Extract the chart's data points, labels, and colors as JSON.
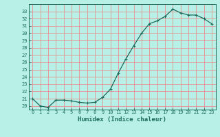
{
  "x": [
    0,
    1,
    2,
    3,
    4,
    5,
    6,
    7,
    8,
    9,
    10,
    11,
    12,
    13,
    14,
    15,
    16,
    17,
    18,
    19,
    20,
    21,
    22,
    23
  ],
  "y": [
    21.0,
    20.0,
    19.8,
    20.8,
    20.8,
    20.7,
    20.5,
    20.4,
    20.5,
    21.2,
    22.3,
    24.5,
    26.5,
    28.3,
    30.0,
    31.3,
    31.7,
    32.3,
    33.3,
    32.8,
    32.5,
    32.5,
    32.0,
    31.3
  ],
  "xlabel": "Humidex (Indice chaleur)",
  "bg_color": "#b8f0e8",
  "line_color": "#1a6b5a",
  "grid_color": "#e89090",
  "ylim": [
    19.5,
    34.0
  ],
  "xlim": [
    -0.5,
    23.5
  ],
  "yticks": [
    20,
    21,
    22,
    23,
    24,
    25,
    26,
    27,
    28,
    29,
    30,
    31,
    32,
    33
  ],
  "xticks": [
    0,
    1,
    2,
    3,
    4,
    5,
    6,
    7,
    8,
    9,
    10,
    11,
    12,
    13,
    14,
    15,
    16,
    17,
    18,
    19,
    20,
    21,
    22,
    23
  ],
  "tick_fontsize": 5.0,
  "xlabel_fontsize": 6.5
}
